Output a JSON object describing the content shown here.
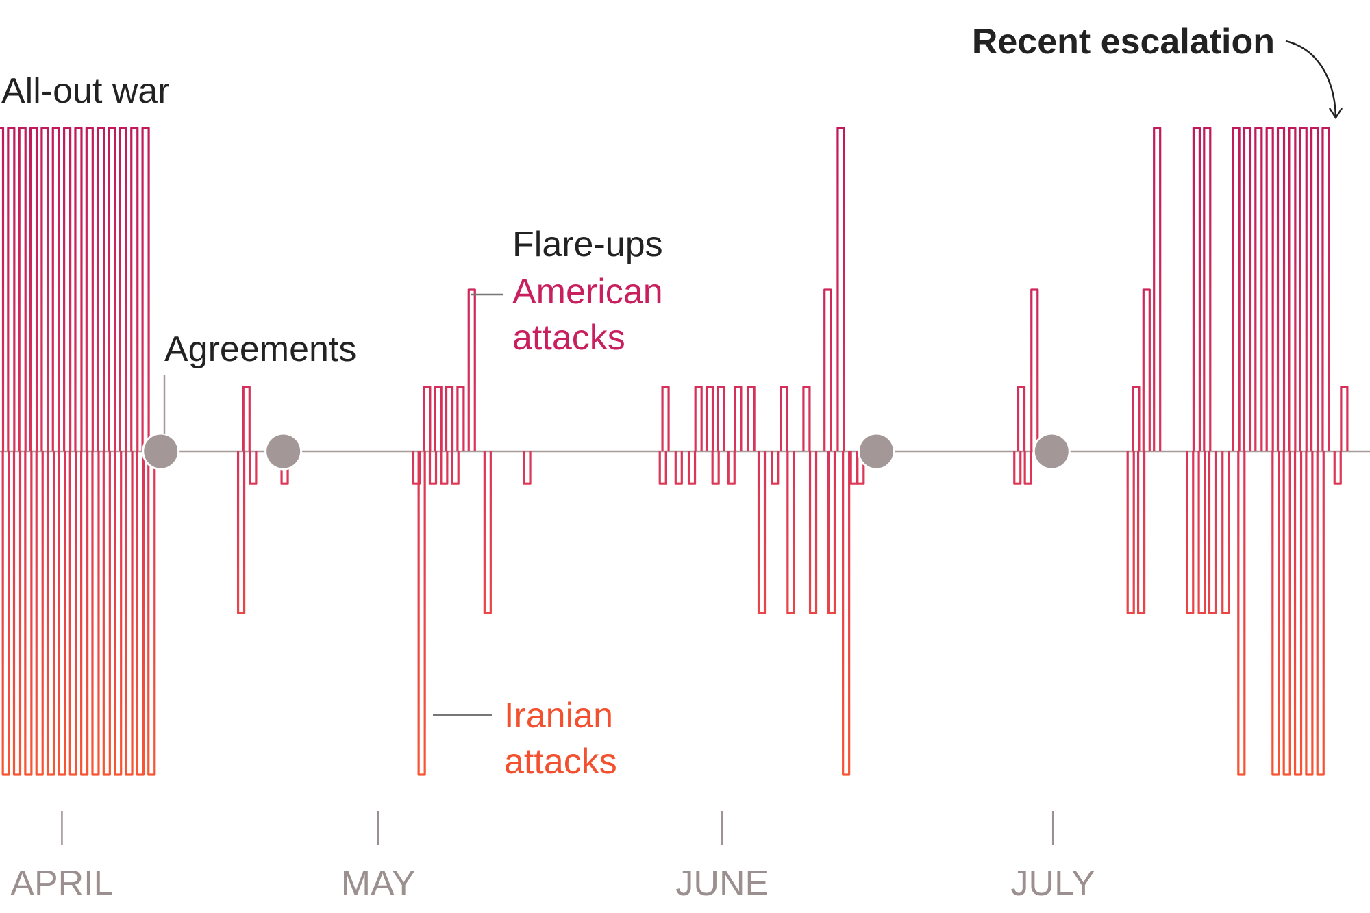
{
  "chart_data": {
    "type": "line",
    "title": "",
    "xlabel": "",
    "ylabel": "",
    "x_ticks": [
      "APRIL",
      "MAY",
      "JUNE",
      "JULY"
    ],
    "series": [
      {
        "name": "American attacks",
        "color": "#c81f5f",
        "direction": "up",
        "events": [
          {
            "day": 0.0,
            "level": 1.0
          },
          {
            "day": 0.85,
            "level": 1.0
          },
          {
            "day": 1.7,
            "level": 1.0
          },
          {
            "day": 2.55,
            "level": 1.0
          },
          {
            "day": 3.4,
            "level": 1.0
          },
          {
            "day": 4.25,
            "level": 1.0
          },
          {
            "day": 5.1,
            "level": 1.0
          },
          {
            "day": 5.95,
            "level": 1.0
          },
          {
            "day": 6.8,
            "level": 1.0
          },
          {
            "day": 7.65,
            "level": 1.0
          },
          {
            "day": 8.5,
            "level": 1.0
          },
          {
            "day": 9.35,
            "level": 1.0
          },
          {
            "day": 10.2,
            "level": 1.0
          },
          {
            "day": 11.05,
            "level": 1.0
          },
          {
            "day": 18.7,
            "level": 0.2
          },
          {
            "day": 32.4,
            "level": 0.2
          },
          {
            "day": 33.25,
            "level": 0.2
          },
          {
            "day": 34.1,
            "level": 0.2
          },
          {
            "day": 34.95,
            "level": 0.2
          },
          {
            "day": 35.8,
            "level": 0.5
          },
          {
            "day": 50.5,
            "level": 0.2
          },
          {
            "day": 53.0,
            "level": 0.2
          },
          {
            "day": 53.85,
            "level": 0.2
          },
          {
            "day": 54.7,
            "level": 0.2
          },
          {
            "day": 56.0,
            "level": 0.2
          },
          {
            "day": 57.0,
            "level": 0.2
          },
          {
            "day": 59.5,
            "level": 0.2
          },
          {
            "day": 61.2,
            "level": 0.2
          },
          {
            "day": 62.8,
            "level": 0.5
          },
          {
            "day": 63.8,
            "level": 1.0
          },
          {
            "day": 77.5,
            "level": 0.2
          },
          {
            "day": 78.5,
            "level": 0.5
          },
          {
            "day": 86.2,
            "level": 0.2
          },
          {
            "day": 87.0,
            "level": 0.5
          },
          {
            "day": 87.8,
            "level": 1.0
          },
          {
            "day": 90.8,
            "level": 1.0
          },
          {
            "day": 91.6,
            "level": 1.0
          },
          {
            "day": 93.8,
            "level": 1.0
          },
          {
            "day": 94.65,
            "level": 1.0
          },
          {
            "day": 95.5,
            "level": 1.0
          },
          {
            "day": 96.35,
            "level": 1.0
          },
          {
            "day": 97.2,
            "level": 1.0
          },
          {
            "day": 98.05,
            "level": 1.0
          },
          {
            "day": 98.9,
            "level": 1.0
          },
          {
            "day": 99.75,
            "level": 1.0
          },
          {
            "day": 100.6,
            "level": 1.0
          },
          {
            "day": 102.0,
            "level": 0.2
          }
        ]
      },
      {
        "name": "Iranian attacks",
        "color": "#f2502e",
        "direction": "down",
        "events": [
          {
            "day": 0.45,
            "level": 1.0
          },
          {
            "day": 1.3,
            "level": 1.0
          },
          {
            "day": 2.15,
            "level": 1.0
          },
          {
            "day": 3.0,
            "level": 1.0
          },
          {
            "day": 3.85,
            "level": 1.0
          },
          {
            "day": 4.7,
            "level": 1.0
          },
          {
            "day": 5.55,
            "level": 1.0
          },
          {
            "day": 6.4,
            "level": 1.0
          },
          {
            "day": 7.25,
            "level": 1.0
          },
          {
            "day": 8.1,
            "level": 1.0
          },
          {
            "day": 8.95,
            "level": 1.0
          },
          {
            "day": 9.8,
            "level": 1.0
          },
          {
            "day": 10.65,
            "level": 1.0
          },
          {
            "day": 11.5,
            "level": 1.0
          },
          {
            "day": 18.3,
            "level": 0.5
          },
          {
            "day": 19.2,
            "level": 0.1
          },
          {
            "day": 21.6,
            "level": 0.1
          },
          {
            "day": 31.6,
            "level": 0.1
          },
          {
            "day": 32.0,
            "level": 1.0
          },
          {
            "day": 32.85,
            "level": 0.1
          },
          {
            "day": 33.7,
            "level": 0.1
          },
          {
            "day": 34.55,
            "level": 0.1
          },
          {
            "day": 37.0,
            "level": 0.5
          },
          {
            "day": 40.0,
            "level": 0.1
          },
          {
            "day": 50.3,
            "level": 0.1
          },
          {
            "day": 51.5,
            "level": 0.1
          },
          {
            "day": 52.5,
            "level": 0.1
          },
          {
            "day": 54.3,
            "level": 0.1
          },
          {
            "day": 55.5,
            "level": 0.1
          },
          {
            "day": 57.8,
            "level": 0.5
          },
          {
            "day": 58.8,
            "level": 0.1
          },
          {
            "day": 60.0,
            "level": 0.5
          },
          {
            "day": 61.7,
            "level": 0.5
          },
          {
            "day": 63.1,
            "level": 0.5
          },
          {
            "day": 64.2,
            "level": 1.0
          },
          {
            "day": 64.8,
            "level": 0.1
          },
          {
            "day": 65.3,
            "level": 0.1
          },
          {
            "day": 77.2,
            "level": 0.1
          },
          {
            "day": 78.0,
            "level": 0.1
          },
          {
            "day": 85.8,
            "level": 0.5
          },
          {
            "day": 86.6,
            "level": 0.5
          },
          {
            "day": 90.3,
            "level": 0.5
          },
          {
            "day": 91.2,
            "level": 0.5
          },
          {
            "day": 92.0,
            "level": 0.5
          },
          {
            "day": 93.0,
            "level": 0.5
          },
          {
            "day": 94.2,
            "level": 1.0
          },
          {
            "day": 96.8,
            "level": 1.0
          },
          {
            "day": 97.65,
            "level": 1.0
          },
          {
            "day": 98.5,
            "level": 1.0
          },
          {
            "day": 99.35,
            "level": 1.0
          },
          {
            "day": 100.2,
            "level": 1.0
          },
          {
            "day": 101.5,
            "level": 0.1
          }
        ]
      }
    ],
    "agreements": [
      {
        "day": 12.2
      },
      {
        "day": 21.5
      },
      {
        "day": 66.5
      },
      {
        "day": 79.8
      }
    ],
    "month_ticks": [
      {
        "label": "APRIL",
        "day": 4.7
      },
      {
        "label": "MAY",
        "day": 28.7
      },
      {
        "label": "JUNE",
        "day": 54.8
      },
      {
        "label": "JULY",
        "day": 79.9
      }
    ],
    "x_range": [
      0,
      102.5
    ],
    "y_range": [
      -1,
      1
    ]
  },
  "annotations": {
    "all_out_war": "All-out war",
    "agreements": "Agreements",
    "flare_ups": "Flare-ups",
    "american_line1": "American",
    "american_line2": "attacks",
    "iranian_line1": "Iranian",
    "iranian_line2": "attacks",
    "recent_escalation": "Recent escalation"
  },
  "colors": {
    "american": "#c81f5f",
    "iranian": "#f2502e",
    "baseline": "#a79b9b",
    "agreement_dot": "#a39797",
    "axis_label": "#9b8f8f",
    "annotation_text": "#222222"
  }
}
